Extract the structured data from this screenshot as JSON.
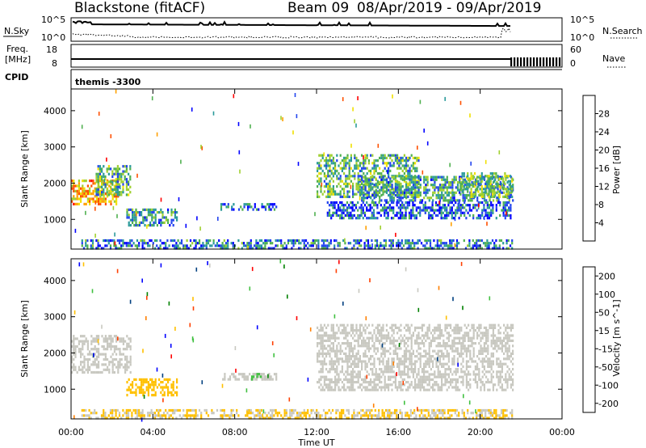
{
  "header": {
    "station": "Blackstone (fitACF)",
    "beam": "Beam 09",
    "date_range": "08/Apr/2019 - 09/Apr/2019"
  },
  "panels": {
    "nsky": {
      "label": "N.Sky",
      "ticks_left": [
        "10^5",
        "10^0"
      ],
      "ticks_right": [
        "10^5",
        "10^0"
      ],
      "right_label": "N.Search"
    },
    "freq": {
      "label_line1": "Freq.",
      "label_line2": "[MHz]",
      "ticks_left": [
        "18",
        "8"
      ],
      "ticks_right": [
        "60",
        "0"
      ],
      "right_label": "Nave"
    },
    "cpid": {
      "label": "CPID",
      "value": "themis -3300"
    }
  },
  "colors": {
    "power": [
      "#0000ff",
      "#2244ee",
      "#2a9a9a",
      "#50b050",
      "#a0d030",
      "#f0e000",
      "#ffa000",
      "#ff5000",
      "#ff0000"
    ],
    "velocity": [
      "#ff0000",
      "#ff4000",
      "#ff8000",
      "#ffc000",
      "#c8c8c0",
      "#40c040",
      "#008000",
      "#004080",
      "#0000ff"
    ]
  },
  "chart_data": [
    {
      "type": "heatmap",
      "name": "power",
      "xlabel": "",
      "ylabel": "Slant Range [km]",
      "xlim": [
        0,
        24
      ],
      "ylim": [
        180,
        4600
      ],
      "yticks": [
        "4000",
        "3000",
        "2000",
        "1000"
      ],
      "colorbar": {
        "label": "Power [dB]",
        "ticks": [
          "28",
          "24",
          "20",
          "16",
          "12",
          "8",
          "4"
        ],
        "range": [
          0,
          32
        ]
      },
      "echo_regions": [
        {
          "t0": 0.0,
          "t1": 2.3,
          "r0": 1450,
          "r1": 2100,
          "value": 22
        },
        {
          "t0": 1.2,
          "t1": 2.9,
          "r0": 1700,
          "r1": 2500,
          "value": 12
        },
        {
          "t0": 2.7,
          "t1": 5.2,
          "r0": 850,
          "r1": 1300,
          "value": 10
        },
        {
          "t0": 7.3,
          "t1": 10.0,
          "r0": 1250,
          "r1": 1450,
          "value": 6
        },
        {
          "t0": 0.5,
          "t1": 21.6,
          "r0": 180,
          "r1": 450,
          "value": 8
        },
        {
          "t0": 12.0,
          "t1": 17.0,
          "r0": 1600,
          "r1": 2800,
          "value": 12
        },
        {
          "t0": 14.0,
          "t1": 21.6,
          "r0": 1500,
          "r1": 2200,
          "value": 10
        },
        {
          "t0": 12.5,
          "t1": 21.5,
          "r0": 1000,
          "r1": 1500,
          "value": 6
        },
        {
          "t0": 19.0,
          "t1": 21.6,
          "r0": 1600,
          "r1": 2300,
          "value": 14
        }
      ]
    },
    {
      "type": "heatmap",
      "name": "velocity",
      "xlabel": "Time UT",
      "ylabel": "Slant Range [km]",
      "xlim": [
        0,
        24
      ],
      "ylim": [
        180,
        4600
      ],
      "xticks": [
        "00:00",
        "04:00",
        "08:00",
        "12:00",
        "16:00",
        "20:00",
        "00:00"
      ],
      "yticks": [
        "4000",
        "3000",
        "2000",
        "1000"
      ],
      "colorbar": {
        "label": "Velocity [m s^-1]",
        "ticks": [
          "200",
          "100",
          "50",
          "15",
          "-15",
          "-50",
          "-100",
          "-200"
        ],
        "range": [
          -250,
          250
        ]
      },
      "echo_regions": [
        {
          "t0": 0.0,
          "t1": 2.9,
          "r0": 1450,
          "r1": 2500,
          "value": 0
        },
        {
          "t0": 2.7,
          "t1": 5.2,
          "r0": 850,
          "r1": 1300,
          "value": -60
        },
        {
          "t0": 7.3,
          "t1": 10.0,
          "r0": 1250,
          "r1": 1450,
          "value": 0
        },
        {
          "t0": 8.8,
          "t1": 9.5,
          "r0": 1250,
          "r1": 1450,
          "value": 30
        },
        {
          "t0": 0.5,
          "t1": 21.6,
          "r0": 180,
          "r1": 450,
          "value": -30
        },
        {
          "t0": 12.0,
          "t1": 21.6,
          "r0": 1000,
          "r1": 2800,
          "value": 0
        }
      ]
    }
  ]
}
